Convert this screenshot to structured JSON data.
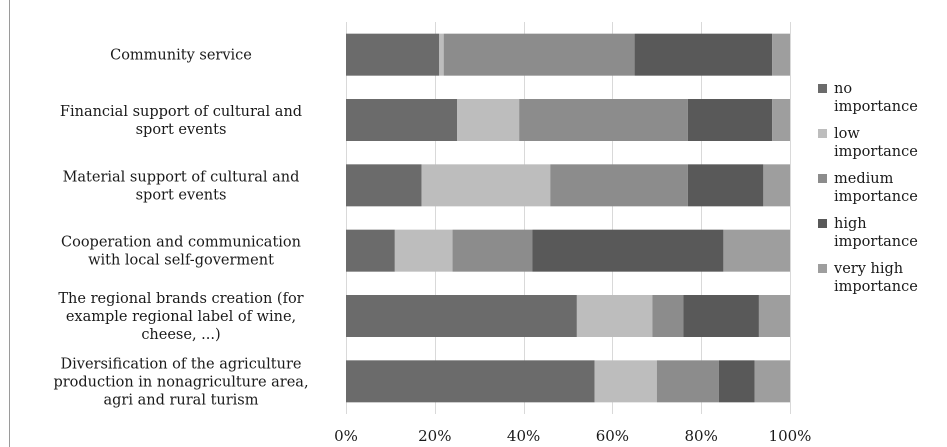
{
  "chart_data": {
    "type": "bar",
    "orientation": "horizontal",
    "stacked": "percent",
    "categories": [
      "Community service",
      "Financial support of cultural and sport events",
      "Material support of cultural and sport events",
      "Cooperation and communication with local self-goverment",
      "The regional brands creation (for example regional label of wine, cheese, ...)",
      "Diversification of the agriculture production in nonagriculture area, agri and rural turism"
    ],
    "category_lines": [
      [
        "Community service"
      ],
      [
        "Financial support of cultural and",
        "sport events"
      ],
      [
        "Material support of cultural and",
        "sport events"
      ],
      [
        "Cooperation and communication",
        "with local self-goverment"
      ],
      [
        "The regional brands creation (for",
        "example regional label of wine,",
        "cheese, ...)"
      ],
      [
        "Diversification of the agriculture",
        "production in nonagriculture area,",
        "agri and rural turism"
      ]
    ],
    "series": [
      {
        "name": "no importance",
        "label_lines": [
          "no",
          "importance"
        ],
        "color": "#6b6b6b",
        "values": [
          21,
          25,
          17,
          11,
          52,
          56
        ]
      },
      {
        "name": "low importance",
        "label_lines": [
          "low",
          "importance"
        ],
        "color": "#bdbdbd",
        "values": [
          1,
          14,
          29,
          13,
          17,
          14
        ]
      },
      {
        "name": "medium importance",
        "label_lines": [
          "medium",
          "importance"
        ],
        "color": "#8c8c8c",
        "values": [
          43,
          38,
          31,
          18,
          7,
          14
        ]
      },
      {
        "name": "high importance",
        "label_lines": [
          "high",
          "importance"
        ],
        "color": "#595959",
        "values": [
          31,
          19,
          17,
          43,
          17,
          8
        ]
      },
      {
        "name": "very high importance",
        "label_lines": [
          "very high",
          "importance"
        ],
        "color": "#9e9e9e",
        "values": [
          4,
          4,
          6,
          15,
          7,
          8
        ]
      }
    ],
    "xlim": [
      0,
      100
    ],
    "xticks": [
      "0%",
      "20%",
      "40%",
      "60%",
      "80%",
      "100%"
    ],
    "grid": true,
    "legend": "right"
  }
}
